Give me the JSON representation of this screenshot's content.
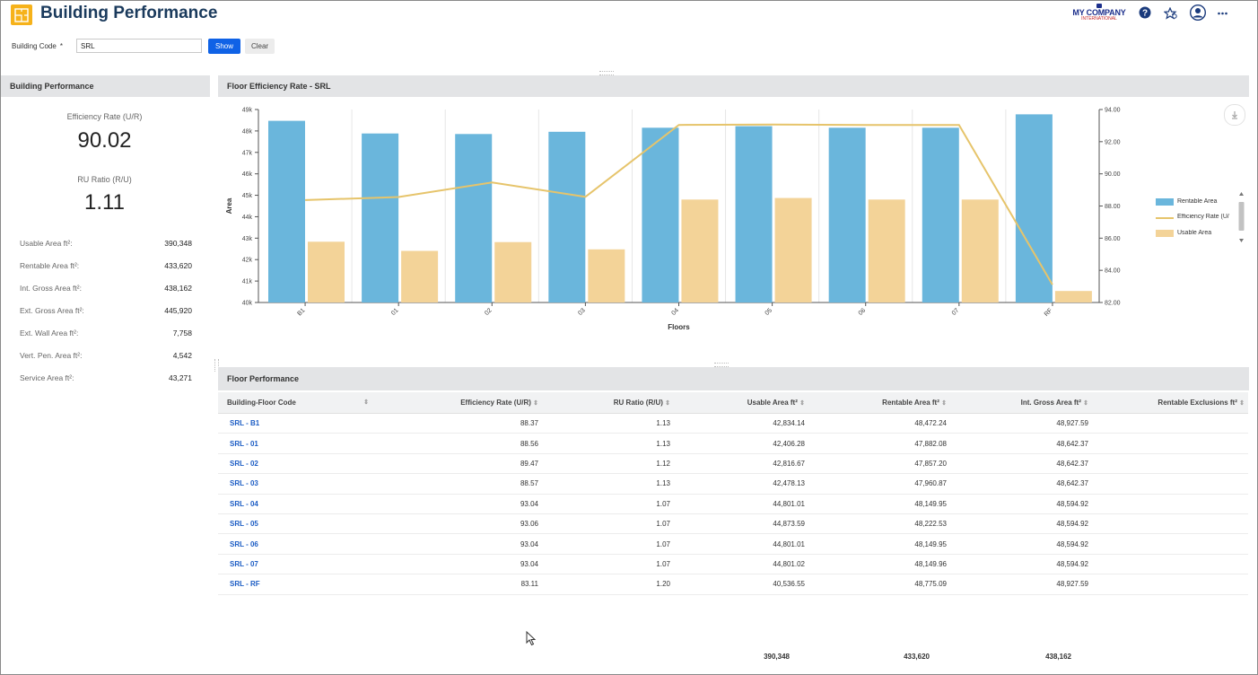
{
  "app": {
    "title": "Building Performance",
    "brand": "MY COMPANY",
    "brand_sub": "INTERNATIONAL"
  },
  "header_icons": [
    "help-icon",
    "favorites-star-icon",
    "user-avatar-icon",
    "more-options-icon"
  ],
  "filter": {
    "label": "Building Code",
    "required_mark": "*",
    "value": "SRL",
    "show_label": "Show",
    "clear_label": "Clear"
  },
  "left_panel": {
    "title": "Building Performance",
    "efficiency_label": "Efficiency Rate (U/R)",
    "efficiency_value": "90.02",
    "ru_label": "RU Ratio (R/U)",
    "ru_value": "1.11",
    "metrics": [
      {
        "label": "Usable Area ft²:",
        "value": "390,348"
      },
      {
        "label": "Rentable Area ft²:",
        "value": "433,620"
      },
      {
        "label": "Int. Gross Area ft²:",
        "value": "438,162"
      },
      {
        "label": "Ext. Gross Area ft²:",
        "value": "445,920"
      },
      {
        "label": "Ext. Wall Area ft²:",
        "value": "7,758"
      },
      {
        "label": "Vert. Pen. Area ft²:",
        "value": "4,542"
      },
      {
        "label": "Service Area ft²:",
        "value": "43,271"
      }
    ]
  },
  "chart_panel": {
    "title": "Floor Efficiency Rate - SRL"
  },
  "chart_data": {
    "type": "bar",
    "categories": [
      "B1",
      "01",
      "02",
      "03",
      "04",
      "05",
      "06",
      "07",
      "RF"
    ],
    "series": [
      {
        "name": "Rentable Area",
        "kind": "bar",
        "axis": "left",
        "color": "#6ab6dc",
        "values": [
          48472.24,
          47882.08,
          47857.2,
          47960.87,
          48149.95,
          48222.53,
          48149.95,
          48149.96,
          48775.09
        ]
      },
      {
        "name": "Usable Area",
        "kind": "bar",
        "axis": "left",
        "color": "#f3d398",
        "values": [
          42834.14,
          42406.28,
          42816.67,
          42478.13,
          44801.01,
          44873.59,
          44801.01,
          44801.02,
          40536.55
        ]
      },
      {
        "name": "Efficiency Rate (U/R)",
        "kind": "line",
        "axis": "right",
        "color": "#e6c46b",
        "values": [
          88.37,
          88.56,
          89.47,
          88.57,
          93.04,
          93.06,
          93.04,
          93.04,
          83.11
        ]
      }
    ],
    "xlabel": "Floors",
    "ylabel": "Area",
    "y2label": "Efficiency Rate (U/R)",
    "ylim": [
      40000,
      49000
    ],
    "y2lim": [
      82,
      94
    ],
    "y_ticks": [
      "40k",
      "41k",
      "42k",
      "43k",
      "44k",
      "45k",
      "46k",
      "47k",
      "48k",
      "49k"
    ],
    "y2_ticks": [
      "82.00",
      "84.00",
      "86.00",
      "88.00",
      "90.00",
      "92.00",
      "94.00"
    ],
    "legend_position": "right",
    "grid": "vertical"
  },
  "legend_labels": [
    "Rentable Area",
    "Efficiency Rate (U/",
    "Usable Area"
  ],
  "table_panel": {
    "title": "Floor Performance"
  },
  "table": {
    "columns": [
      "Building-Floor Code",
      "Efficiency Rate (U/R)",
      "RU Ratio (R/U)",
      "Usable Area ft²",
      "Rentable Area ft²",
      "Int. Gross Area ft²",
      "Rentable Exclusions ft²"
    ],
    "rows": [
      [
        "SRL - B1",
        "88.37",
        "1.13",
        "42,834.14",
        "48,472.24",
        "48,927.59",
        ""
      ],
      [
        "SRL - 01",
        "88.56",
        "1.13",
        "42,406.28",
        "47,882.08",
        "48,642.37",
        ""
      ],
      [
        "SRL - 02",
        "89.47",
        "1.12",
        "42,816.67",
        "47,857.20",
        "48,642.37",
        ""
      ],
      [
        "SRL - 03",
        "88.57",
        "1.13",
        "42,478.13",
        "47,960.87",
        "48,642.37",
        ""
      ],
      [
        "SRL - 04",
        "93.04",
        "1.07",
        "44,801.01",
        "48,149.95",
        "48,594.92",
        ""
      ],
      [
        "SRL - 05",
        "93.06",
        "1.07",
        "44,873.59",
        "48,222.53",
        "48,594.92",
        ""
      ],
      [
        "SRL - 06",
        "93.04",
        "1.07",
        "44,801.01",
        "48,149.95",
        "48,594.92",
        ""
      ],
      [
        "SRL - 07",
        "93.04",
        "1.07",
        "44,801.02",
        "48,149.96",
        "48,594.92",
        ""
      ],
      [
        "SRL - RF",
        "83.11",
        "1.20",
        "40,536.55",
        "48,775.09",
        "48,927.59",
        ""
      ]
    ],
    "totals": [
      "390,348",
      "433,620",
      "438,162"
    ]
  }
}
